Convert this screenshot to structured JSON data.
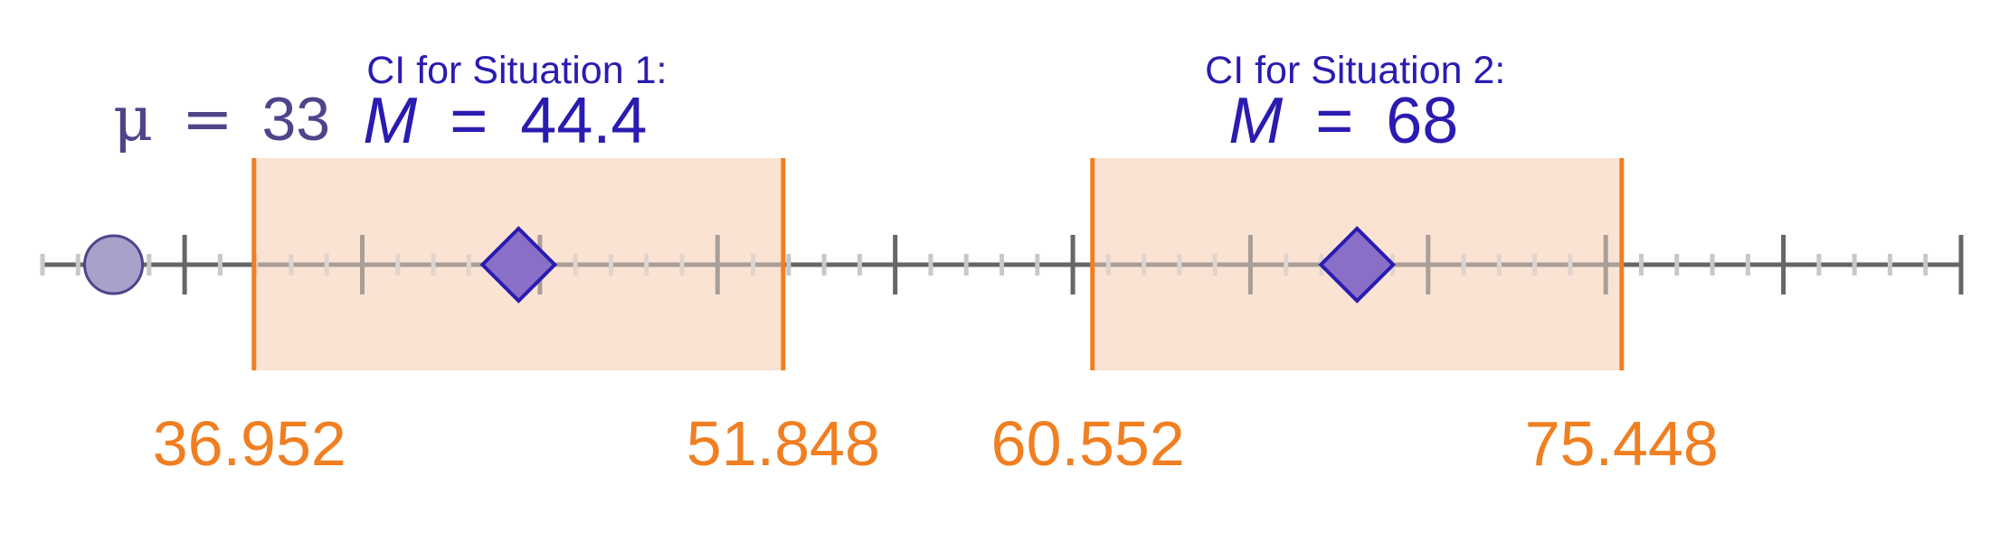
{
  "mu": {
    "symbol": "μ",
    "equals": "=",
    "value": "33",
    "x": 33
  },
  "axis": {
    "min": 31,
    "max": 85,
    "major_step": 5,
    "minor_step": 1
  },
  "intervals": [
    {
      "title": "CI for Situation 1:",
      "m_symbol": "M",
      "equals": "=",
      "mean_text": "44.4",
      "mean": 44.4,
      "lower": 36.952,
      "upper": 51.848,
      "lower_text": "36.952",
      "upper_text": "51.848"
    },
    {
      "title": "CI for Situation 2:",
      "m_symbol": "M",
      "equals": "=",
      "mean_text": "68",
      "mean": 68,
      "lower": 60.552,
      "upper": 75.448,
      "lower_text": "60.552",
      "upper_text": "75.448"
    }
  ],
  "colors": {
    "axis": "#666666",
    "minor_tick": "#c8c8c8",
    "ci_fill": "#fbe3d4",
    "ci_edge": "#f07f22",
    "mean_fill": "#8a6fc8",
    "mean_stroke": "#2a1cb0",
    "title_text": "#2a1cb0",
    "mu_text": "#4f448a",
    "mu_dot_fill": "#a9a1c9",
    "mu_dot_stroke": "#4f448a",
    "bound_text": "#f07f22"
  }
}
